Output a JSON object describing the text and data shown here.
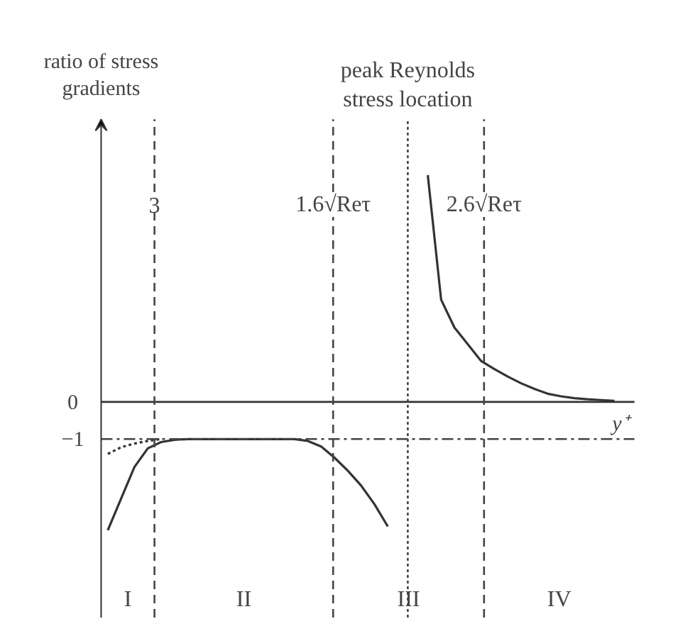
{
  "chart_data": {
    "type": "line",
    "ylabel": "ratio of stress gradients",
    "xlabel": "y⁺",
    "categories": [
      null,
      null,
      null,
      null,
      null,
      null,
      null,
      null,
      null,
      null,
      null,
      null,
      null,
      null,
      null,
      null,
      null,
      null,
      null,
      null,
      null,
      null,
      null,
      null,
      null,
      null,
      null,
      null,
      null,
      null,
      null,
      null,
      null,
      null,
      null,
      null,
      null,
      null,
      null,
      null
    ],
    "ylim": [
      -5.8,
      7.6
    ],
    "yticks": [
      0,
      {
        "value": -1,
        "label": "−1"
      }
    ],
    "series": [
      {
        "color": "#333333",
        "line_style": "solid",
        "values": [
          -3.45,
          -2.6,
          -1.75,
          -1.25,
          -1.08,
          -1.02,
          -1.0,
          -1.0,
          -1.0,
          -1.0,
          -1.0,
          -1.0,
          -1.0,
          -1.0,
          -1.0,
          -1.05,
          -1.2,
          -1.5,
          -1.85,
          -2.25,
          -2.75,
          -3.35,
          null,
          null,
          null,
          null,
          null,
          null,
          null,
          null,
          null,
          null,
          null,
          null,
          null,
          null,
          null,
          null,
          null,
          null
        ]
      },
      {
        "color": "#333333",
        "line_style": "dotted",
        "values": [
          -1.4,
          -1.22,
          -1.12,
          -1.05,
          -1.0,
          null,
          null,
          null,
          null,
          null,
          null,
          null,
          null,
          null,
          null,
          null,
          null,
          null,
          null,
          null,
          null,
          null,
          null,
          null,
          null,
          null,
          null,
          null,
          null,
          null,
          null,
          null,
          null,
          null,
          null,
          null,
          null,
          null,
          null,
          null
        ]
      },
      {
        "color": "#333333",
        "line_style": "solid",
        "values": [
          null,
          null,
          null,
          null,
          null,
          null,
          null,
          null,
          null,
          null,
          null,
          null,
          null,
          null,
          null,
          null,
          null,
          null,
          null,
          null,
          null,
          null,
          null,
          null,
          6.1,
          2.75,
          2.0,
          1.55,
          1.1,
          0.88,
          0.68,
          0.5,
          0.35,
          0.22,
          0.15,
          0.1,
          0.07,
          0.05,
          0.03,
          null
        ]
      }
    ],
    "ref_lines": [
      {
        "axis": "x",
        "label": "3",
        "line_style": "dashed",
        "color": "#444444"
      },
      {
        "axis": "x",
        "label": "1.6√Reτ",
        "line_style": "dashed",
        "color": "#444444"
      },
      {
        "axis": "x",
        "label": "peak Reynolds stress location",
        "line_style": "dotted",
        "color": "#444444"
      },
      {
        "axis": "x",
        "label": "2.6√Reτ",
        "line_style": "dashed",
        "color": "#444444"
      },
      {
        "axis": "y",
        "value": -1,
        "line_style": "dashdot",
        "color": "#444444"
      }
    ],
    "annotations": [
      "I",
      "II",
      "III",
      "IV"
    ]
  }
}
